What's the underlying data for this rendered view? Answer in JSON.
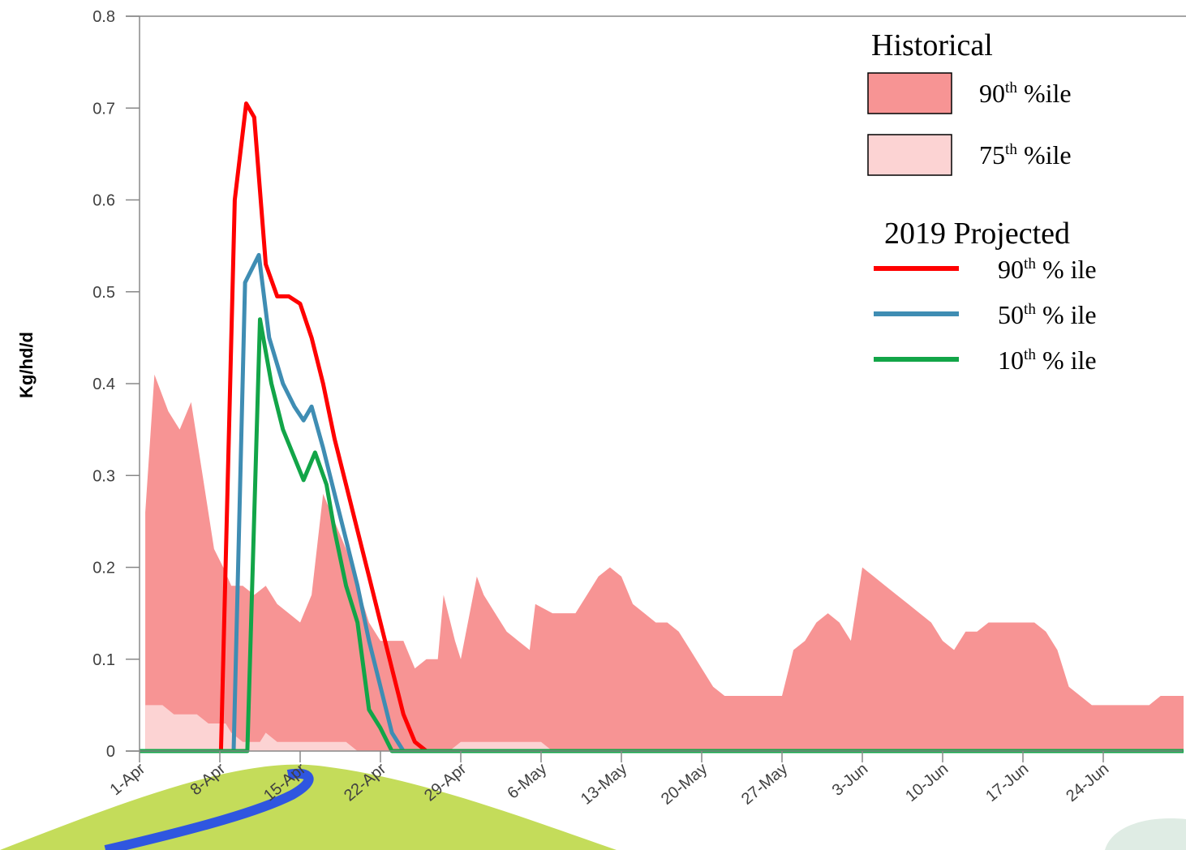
{
  "chart_data": {
    "type": "line",
    "y_label": "Kg/hd/d",
    "xlim": [
      0,
      91
    ],
    "xticks": [
      {
        "value": 0,
        "label": "1-Apr"
      },
      {
        "value": 7,
        "label": "8-Apr"
      },
      {
        "value": 14,
        "label": "15-Apr"
      },
      {
        "value": 21,
        "label": "22-Apr"
      },
      {
        "value": 28,
        "label": "29-Apr"
      },
      {
        "value": 35,
        "label": "6-May"
      },
      {
        "value": 42,
        "label": "13-May"
      },
      {
        "value": 49,
        "label": "20-May"
      },
      {
        "value": 56,
        "label": "27-May"
      },
      {
        "value": 63,
        "label": "3-Jun"
      },
      {
        "value": 70,
        "label": "10-Jun"
      },
      {
        "value": 77,
        "label": "17-Jun"
      },
      {
        "value": 84,
        "label": "24-Jun"
      }
    ],
    "ylim": [
      0,
      0.8
    ],
    "yticks": [
      0,
      0.1,
      0.2,
      0.3,
      0.4,
      0.5,
      0.6,
      0.7,
      0.8
    ],
    "legend_area_title": "Historical",
    "legend_line_title": "2019 Projected",
    "series": [
      {
        "name": "90th %ile",
        "kind": "area",
        "color": "#f79494",
        "x": [
          0.5,
          1.3,
          2.5,
          3.5,
          4.5,
          5.5,
          6.5,
          7.3,
          8,
          9,
          10,
          11,
          12,
          13,
          14,
          15,
          16,
          17,
          18,
          19,
          20,
          21,
          22,
          23,
          24,
          25,
          26,
          26.5,
          27.5,
          28,
          29.4,
          30,
          31,
          32,
          33,
          34,
          34.5,
          36,
          37,
          38,
          39,
          40,
          41,
          42,
          43,
          44,
          45,
          46,
          47,
          48,
          49,
          50,
          51,
          52,
          53,
          54,
          55,
          56,
          57,
          58,
          59,
          60,
          61,
          62,
          63,
          64,
          65,
          66,
          67,
          68,
          69,
          70,
          71,
          72,
          73,
          74,
          75,
          76,
          77,
          78,
          79,
          80,
          81,
          82,
          83,
          84,
          85,
          86,
          87,
          88,
          89,
          90,
          91
        ],
        "values": [
          0.26,
          0.41,
          0.37,
          0.35,
          0.38,
          0.3,
          0.22,
          0.2,
          0.18,
          0.18,
          0.17,
          0.18,
          0.16,
          0.15,
          0.14,
          0.17,
          0.28,
          0.25,
          0.22,
          0.18,
          0.14,
          0.12,
          0.12,
          0.12,
          0.09,
          0.1,
          0.1,
          0.17,
          0.12,
          0.1,
          0.19,
          0.17,
          0.15,
          0.13,
          0.12,
          0.11,
          0.16,
          0.15,
          0.15,
          0.15,
          0.17,
          0.19,
          0.2,
          0.19,
          0.16,
          0.15,
          0.14,
          0.14,
          0.13,
          0.11,
          0.09,
          0.07,
          0.06,
          0.06,
          0.06,
          0.06,
          0.06,
          0.06,
          0.11,
          0.12,
          0.14,
          0.15,
          0.14,
          0.12,
          0.2,
          0.19,
          0.18,
          0.17,
          0.16,
          0.15,
          0.14,
          0.12,
          0.11,
          0.13,
          0.13,
          0.14,
          0.14,
          0.14,
          0.14,
          0.14,
          0.13,
          0.11,
          0.07,
          0.06,
          0.05,
          0.05,
          0.05,
          0.05,
          0.05,
          0.05,
          0.06,
          0.06,
          0.06
        ]
      },
      {
        "name": "75th %ile",
        "kind": "area",
        "color": "#fcd3d3",
        "x": [
          0.5,
          2,
          3,
          5,
          6,
          7.5,
          8,
          9,
          10.5,
          11,
          12,
          18,
          19,
          27,
          28,
          35,
          36,
          91
        ],
        "values": [
          0.05,
          0.05,
          0.04,
          0.04,
          0.03,
          0.03,
          0.02,
          0.01,
          0.01,
          0.02,
          0.01,
          0.01,
          0,
          0,
          0.01,
          0.01,
          0,
          0
        ]
      },
      {
        "name": "90th % ile",
        "kind": "line",
        "color": "#ff0000",
        "x": [
          7.1,
          8.3,
          9.3,
          10,
          11,
          12,
          13,
          14,
          15,
          16,
          17,
          18,
          19,
          20,
          21,
          22,
          23,
          24,
          25,
          91
        ],
        "values": [
          0,
          0.6,
          0.705,
          0.69,
          0.53,
          0.495,
          0.495,
          0.487,
          0.45,
          0.4,
          0.34,
          0.29,
          0.24,
          0.19,
          0.14,
          0.09,
          0.04,
          0.01,
          0,
          0
        ]
      },
      {
        "name": "50th % ile",
        "kind": "line",
        "color": "#3f8db3",
        "x": [
          8.2,
          9.2,
          10.4,
          11.3,
          12.5,
          13.5,
          14.3,
          15,
          16,
          17,
          18,
          19,
          20,
          21,
          22,
          23,
          91
        ],
        "values": [
          0,
          0.51,
          0.54,
          0.45,
          0.4,
          0.375,
          0.36,
          0.375,
          0.33,
          0.28,
          0.23,
          0.18,
          0.12,
          0.07,
          0.02,
          0,
          0
        ]
      },
      {
        "name": "10th % ile",
        "kind": "line",
        "color": "#12a548",
        "x": [
          0,
          9.4,
          10.5,
          11.5,
          12.5,
          14.3,
          15.3,
          16.3,
          17,
          18,
          19,
          20,
          21,
          22,
          91
        ],
        "values": [
          0,
          0,
          0.47,
          0.4,
          0.35,
          0.295,
          0.325,
          0.29,
          0.24,
          0.18,
          0.14,
          0.045,
          0.025,
          0,
          0
        ]
      }
    ]
  }
}
